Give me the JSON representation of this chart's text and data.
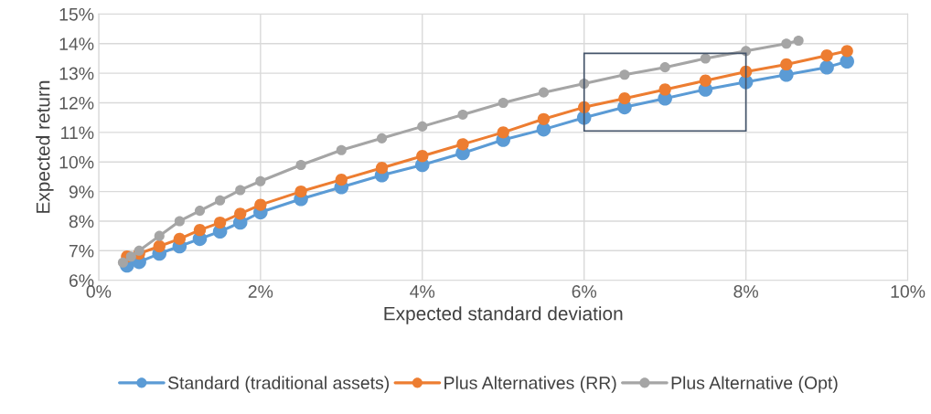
{
  "chart_data": {
    "type": "line",
    "xlabel": "Expected standard deviation",
    "ylabel": "Expected return",
    "series": [
      {
        "name": "Standard (traditional assets)",
        "color": "#5b9bd5",
        "x": [
          0.35,
          0.5,
          0.75,
          1,
          1.25,
          1.5,
          1.75,
          2,
          2.5,
          3,
          3.5,
          4,
          4.5,
          5,
          5.5,
          6,
          6.5,
          7,
          7.5,
          8,
          8.5,
          9,
          9.25
        ],
        "values": [
          6.5,
          6.62,
          6.9,
          7.15,
          7.4,
          7.65,
          7.95,
          8.3,
          8.75,
          9.15,
          9.55,
          9.9,
          10.3,
          10.75,
          11.1,
          11.5,
          11.85,
          12.15,
          12.45,
          12.7,
          12.95,
          13.2,
          13.4
        ]
      },
      {
        "name": "Plus Alternatives (RR)",
        "color": "#ed7d31",
        "x": [
          0.35,
          0.5,
          0.75,
          1,
          1.25,
          1.5,
          1.75,
          2,
          2.5,
          3,
          3.5,
          4,
          4.5,
          5,
          5.5,
          6,
          6.5,
          7,
          7.5,
          8,
          8.5,
          9,
          9.25
        ],
        "values": [
          6.8,
          6.9,
          7.15,
          7.4,
          7.7,
          7.95,
          8.25,
          8.55,
          9.0,
          9.4,
          9.8,
          10.2,
          10.6,
          11.0,
          11.45,
          11.85,
          12.15,
          12.45,
          12.75,
          13.05,
          13.3,
          13.6,
          13.75
        ]
      },
      {
        "name": "Plus Alternative (Opt)",
        "color": "#a5a5a5",
        "x": [
          0.3,
          0.4,
          0.5,
          0.75,
          1,
          1.25,
          1.5,
          1.75,
          2,
          2.5,
          3,
          3.5,
          4,
          4.5,
          5,
          5.5,
          6,
          6.5,
          7,
          7.5,
          8,
          8.5,
          8.65
        ],
        "values": [
          6.6,
          6.8,
          7.0,
          7.5,
          8.0,
          8.35,
          8.7,
          9.05,
          9.35,
          9.9,
          10.4,
          10.8,
          11.2,
          11.6,
          12.0,
          12.35,
          12.65,
          12.95,
          13.2,
          13.5,
          13.75,
          14.0,
          14.1
        ]
      }
    ],
    "xlim": [
      0,
      10
    ],
    "ylim": [
      6,
      15
    ],
    "xticks": [
      {
        "value": 0,
        "label": "0%"
      },
      {
        "value": 2,
        "label": "2%"
      },
      {
        "value": 4,
        "label": "4%"
      },
      {
        "value": 6,
        "label": "6%"
      },
      {
        "value": 8,
        "label": "8%"
      },
      {
        "value": 10,
        "label": "10%"
      }
    ],
    "yticks": [
      {
        "value": 6,
        "label": "6%"
      },
      {
        "value": 7,
        "label": "7%"
      },
      {
        "value": 8,
        "label": "8%"
      },
      {
        "value": 9,
        "label": "9%"
      },
      {
        "value": 10,
        "label": "10%"
      },
      {
        "value": 11,
        "label": "11%"
      },
      {
        "value": 12,
        "label": "12%"
      },
      {
        "value": 13,
        "label": "13%"
      },
      {
        "value": 14,
        "label": "14%"
      },
      {
        "value": 15,
        "label": "15%"
      }
    ],
    "grid": true,
    "legend": "bottom",
    "marker": "circle",
    "line_style": "solid"
  }
}
